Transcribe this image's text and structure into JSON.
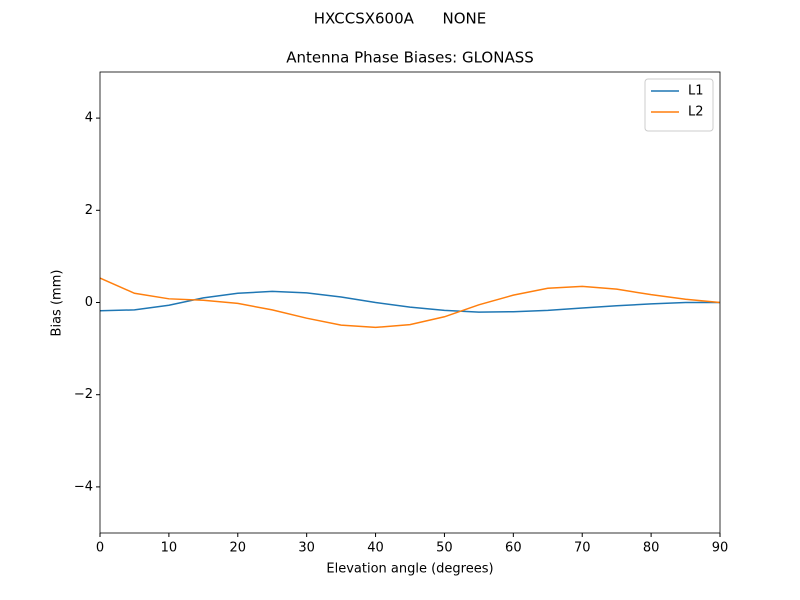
{
  "chart_data": {
    "type": "line",
    "suptitle": "HXCCSX600A      NONE",
    "title": "Antenna Phase Biases: GLONASS",
    "x_label": "Elevation angle (degrees)",
    "y_label": "Bias (mm)",
    "x": [
      0,
      5,
      10,
      15,
      20,
      25,
      30,
      35,
      40,
      45,
      50,
      55,
      60,
      65,
      70,
      75,
      80,
      85,
      90
    ],
    "series": [
      {
        "name": "L1",
        "color": "#1f77b4",
        "values": [
          -0.18,
          -0.16,
          -0.06,
          0.1,
          0.2,
          0.24,
          0.21,
          0.12,
          0.0,
          -0.1,
          -0.17,
          -0.21,
          -0.2,
          -0.17,
          -0.12,
          -0.07,
          -0.03,
          0.0,
          0.0
        ]
      },
      {
        "name": "L2",
        "color": "#ff7f0e",
        "values": [
          0.53,
          0.2,
          0.08,
          0.05,
          -0.02,
          -0.16,
          -0.34,
          -0.49,
          -0.54,
          -0.48,
          -0.31,
          -0.05,
          0.16,
          0.31,
          0.35,
          0.29,
          0.17,
          0.07,
          0.0
        ]
      }
    ],
    "xlim": [
      0,
      90
    ],
    "xticks": [
      0,
      10,
      20,
      30,
      40,
      50,
      60,
      70,
      80,
      90
    ],
    "ylim": [
      -5,
      5
    ],
    "yticks": [
      {
        "value": -4,
        "label": "−4"
      },
      {
        "value": -2,
        "label": "−2"
      },
      0,
      2,
      4
    ],
    "legend": "upper right",
    "grid": false
  }
}
